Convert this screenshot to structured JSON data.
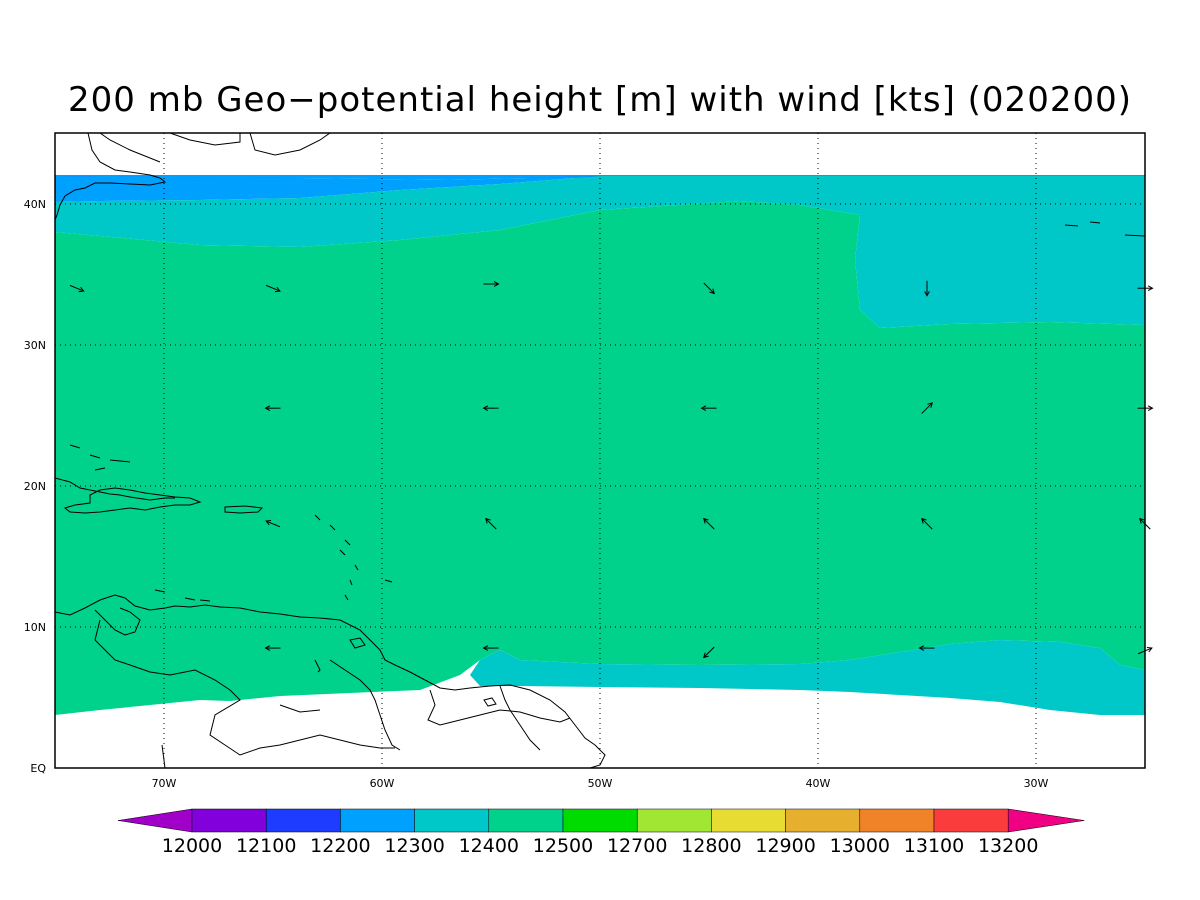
{
  "title": "200 mb Geo−potential height [m] with wind [kts] (020200)",
  "map": {
    "projection": "lat-lon",
    "lon_range": [
      -75,
      -25
    ],
    "lat_range": [
      0,
      45
    ],
    "data_region_lat": [
      4,
      42
    ],
    "lon_ticks": [
      "70W",
      "60W",
      "50W",
      "40W",
      "30W"
    ],
    "lat_ticks": [
      "EQ",
      "10N",
      "20N",
      "30N",
      "40N"
    ],
    "grid": "dotted",
    "coastlines": true
  },
  "colorbar": {
    "levels": [
      "12000",
      "12100",
      "12200",
      "12300",
      "12400",
      "12500",
      "12700",
      "12800",
      "12900",
      "13000",
      "13100",
      "13200"
    ],
    "colors": [
      "#a000c8",
      "#8200dc",
      "#1e3cff",
      "#00a0ff",
      "#00c8c8",
      "#00d28c",
      "#00dc00",
      "#a0e632",
      "#e6dc32",
      "#e6af2d",
      "#f08228",
      "#fa3c3c",
      "#f00082"
    ],
    "extend": "both"
  },
  "fields": {
    "dominant_range": "12400-12500",
    "dominant_color": "#00d28c",
    "secondary_color": "#00c8c8",
    "north_color": "#00a0ff",
    "far_north_color": "#1e3cff"
  },
  "wind_vectors": [
    {
      "lon": -74,
      "lat": 34,
      "dir": "east-southeast"
    },
    {
      "lon": -65,
      "lat": 34,
      "dir": "east-southeast"
    },
    {
      "lon": -55,
      "lat": 34.3,
      "dir": "east"
    },
    {
      "lon": -45,
      "lat": 34,
      "dir": "southeast"
    },
    {
      "lon": -35,
      "lat": 34,
      "dir": "south"
    },
    {
      "lon": -25,
      "lat": 34,
      "dir": "east"
    },
    {
      "lon": -65,
      "lat": 25.5,
      "dir": "west"
    },
    {
      "lon": -55,
      "lat": 25.5,
      "dir": "west"
    },
    {
      "lon": -45,
      "lat": 25.5,
      "dir": "west"
    },
    {
      "lon": -35,
      "lat": 25.5,
      "dir": "northeast"
    },
    {
      "lon": -25,
      "lat": 25.5,
      "dir": "east"
    },
    {
      "lon": -65,
      "lat": 17.3,
      "dir": "west-northwest"
    },
    {
      "lon": -55,
      "lat": 17.3,
      "dir": "northwest"
    },
    {
      "lon": -45,
      "lat": 17.3,
      "dir": "northwest"
    },
    {
      "lon": -35,
      "lat": 17.3,
      "dir": "northwest"
    },
    {
      "lon": -25,
      "lat": 17.3,
      "dir": "northwest"
    },
    {
      "lon": -65,
      "lat": 8.5,
      "dir": "west"
    },
    {
      "lon": -55,
      "lat": 8.5,
      "dir": "west"
    },
    {
      "lon": -45,
      "lat": 8.2,
      "dir": "southwest"
    },
    {
      "lon": -35,
      "lat": 8.5,
      "dir": "west"
    },
    {
      "lon": -25,
      "lat": 8.3,
      "dir": "east-northeast"
    }
  ]
}
